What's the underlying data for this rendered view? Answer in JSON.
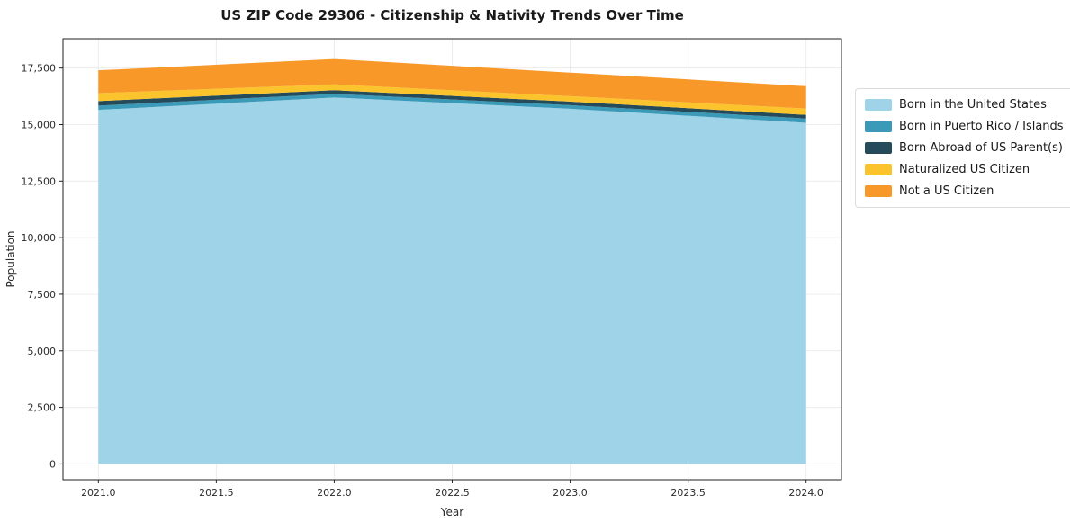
{
  "chart_data": {
    "type": "area",
    "stacked": true,
    "title": "US ZIP Code 29306 - Citizenship & Nativity Trends Over Time",
    "xlabel": "Year",
    "ylabel": "Population",
    "x": [
      2021,
      2022,
      2023,
      2024
    ],
    "series": [
      {
        "name": "Born in the United States",
        "color": "#9ed3e8",
        "values": [
          15650,
          16200,
          15700,
          15080
        ]
      },
      {
        "name": "Born in Puerto Rico / Islands",
        "color": "#3b9ab8",
        "values": [
          190,
          160,
          160,
          190
        ]
      },
      {
        "name": "Born Abroad of US Parent(s)",
        "color": "#254b5a",
        "values": [
          200,
          160,
          160,
          160
        ]
      },
      {
        "name": "Naturalized US Citizen",
        "color": "#fcc42c",
        "values": [
          350,
          260,
          240,
          280
        ]
      },
      {
        "name": "Not a US Citizen",
        "color": "#f79829",
        "values": [
          1010,
          1120,
          1040,
          990
        ]
      }
    ],
    "totals": [
      17400,
      17900,
      17300,
      16700
    ],
    "x_ticks": [
      {
        "value": 2021.0,
        "label": "2021.0"
      },
      {
        "value": 2021.5,
        "label": "2021.5"
      },
      {
        "value": 2022.0,
        "label": "2022.0"
      },
      {
        "value": 2022.5,
        "label": "2022.5"
      },
      {
        "value": 2023.0,
        "label": "2023.0"
      },
      {
        "value": 2023.5,
        "label": "2023.5"
      },
      {
        "value": 2024.0,
        "label": "2024.0"
      }
    ],
    "y_ticks": [
      {
        "value": 0,
        "label": "0"
      },
      {
        "value": 2500,
        "label": "2,500"
      },
      {
        "value": 5000,
        "label": "5,000"
      },
      {
        "value": 7500,
        "label": "7,500"
      },
      {
        "value": 10000,
        "label": "10,000"
      },
      {
        "value": 12500,
        "label": "12,500"
      },
      {
        "value": 15000,
        "label": "15,000"
      },
      {
        "value": 17500,
        "label": "17,500"
      }
    ],
    "xlim": [
      2020.85,
      2024.15
    ],
    "ylim": [
      -700,
      18800
    ],
    "grid": true,
    "grid_color": "#ececec",
    "axis_color": "#222222",
    "legend_position": "right"
  }
}
